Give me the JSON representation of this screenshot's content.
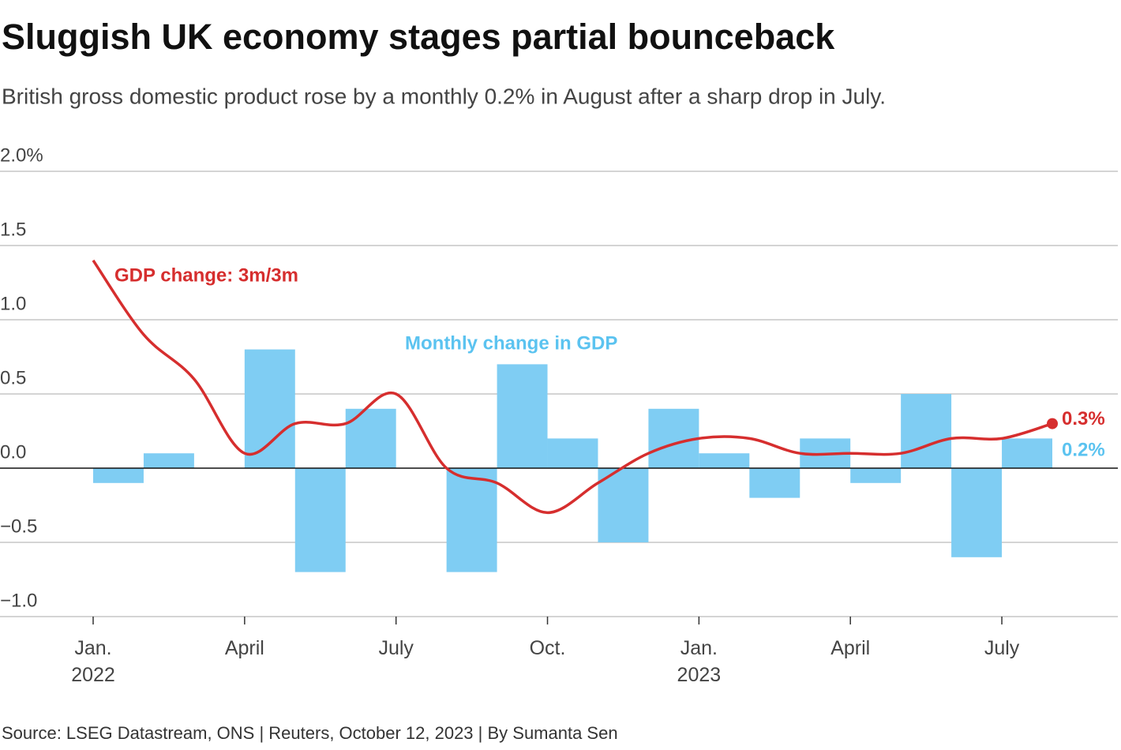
{
  "chart_data": {
    "type": "bar-line",
    "title": "Sluggish UK economy stages partial bounceback",
    "subtitle": "British gross domestic product rose by a monthly 0.2% in August after a sharp drop in July.",
    "source": "Source: LSEG Datastream, ONS | Reuters, October 12, 2023 | By Sumanta Sen",
    "categories": [
      "Jan. 2022",
      null,
      null,
      "April",
      null,
      null,
      "July",
      null,
      null,
      "Oct.",
      null,
      null,
      "Jan. 2023",
      null,
      null,
      "April",
      null,
      null,
      "July",
      null
    ],
    "series": [
      {
        "name": "Monthly change in GDP",
        "type": "bar",
        "color": "#7fcdf3",
        "values": [
          null,
          -0.1,
          0.1,
          0,
          0.8,
          -0.7,
          0.4,
          0,
          -0.7,
          0.7,
          0.2,
          -0.5,
          0.4,
          0.1,
          -0.2,
          0.2,
          -0.1,
          0.5,
          -0.6,
          0.2
        ],
        "end_label": "0.2%"
      },
      {
        "name": "GDP change: 3m/3m",
        "type": "line",
        "color": "#d62e2e",
        "values": [
          1.4,
          0.9,
          0.6,
          0.1,
          0.3,
          0.3,
          0.5,
          0,
          -0.1,
          -0.3,
          -0.1,
          0.1,
          0.2,
          0.2,
          0.1,
          0.1,
          0.1,
          0.2,
          0.2,
          0.3
        ],
        "end_label": "0.3%"
      }
    ],
    "ylim": [
      -1,
      2
    ],
    "yticks": [
      {
        "value": 2,
        "label": "2.0%"
      },
      1.5,
      {
        "value": 1,
        "label": "1.0"
      },
      0.5,
      {
        "value": 0,
        "label": "0.0"
      },
      {
        "value": -0.5,
        "label": "−0.5"
      },
      {
        "value": -1,
        "label": "−1.0"
      }
    ],
    "grid": true
  }
}
